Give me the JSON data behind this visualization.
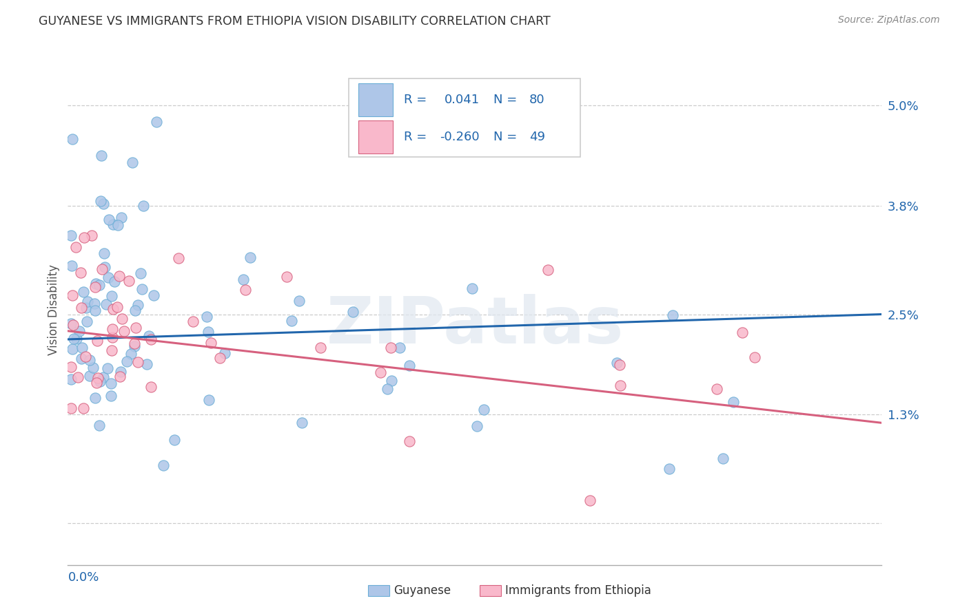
{
  "title": "GUYANESE VS IMMIGRANTS FROM ETHIOPIA VISION DISABILITY CORRELATION CHART",
  "source": "Source: ZipAtlas.com",
  "ylabel": "Vision Disability",
  "series1_name": "Guyanese",
  "series1_face_color": "#aec6e8",
  "series1_edge_color": "#6baed6",
  "series1_line_color": "#2166ac",
  "series1_R": 0.041,
  "series1_N": 80,
  "series2_name": "Immigrants from Ethiopia",
  "series2_face_color": "#f9b8cb",
  "series2_edge_color": "#d6607e",
  "series2_line_color": "#d6607e",
  "series2_R": -0.26,
  "series2_N": 49,
  "xmin": 0.0,
  "xmax": 0.25,
  "ymin": -0.005,
  "ymax": 0.056,
  "ytick_vals": [
    0.0,
    0.013,
    0.025,
    0.038,
    0.05
  ],
  "ytick_labels": [
    "",
    "1.3%",
    "2.5%",
    "3.8%",
    "5.0%"
  ],
  "legend_text_color": "#2166ac",
  "watermark_text": "ZIPatlas",
  "watermark_color": "#e8e8e8",
  "grid_color": "#cccccc",
  "bottom_border_color": "#aaaaaa"
}
